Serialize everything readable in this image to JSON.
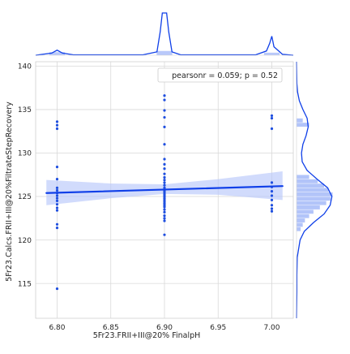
{
  "chart_data": {
    "type": "scatter",
    "xlabel": "5Fr23.FRII+III@20% FinalpH",
    "ylabel": "5Fr23.Calcs.FRII+III@20%FiltrateStepRecovery",
    "xlim": [
      6.78,
      7.02
    ],
    "ylim": [
      111,
      140.5
    ],
    "x_ticks": [
      "6.80",
      "6.85",
      "6.90",
      "6.95",
      "7.00"
    ],
    "x_tick_values": [
      6.8,
      6.85,
      6.9,
      6.95,
      7.0
    ],
    "y_ticks": [
      "115",
      "120",
      "125",
      "130",
      "135",
      "140"
    ],
    "y_tick_values": [
      115,
      120,
      125,
      130,
      135,
      140
    ],
    "legend_text": "pearsonr = 0.059; p = 0.52",
    "legend_placement": "top-right",
    "grid": true,
    "colors": {
      "points": "#1f4fe0",
      "line": "#0f3fe8",
      "band": "#b9c8fb",
      "hist": "#7f9cf5",
      "grid": "#d9d9d9"
    },
    "points": [
      {
        "x": 6.8,
        "y": 133.6
      },
      {
        "x": 6.8,
        "y": 133.2
      },
      {
        "x": 6.8,
        "y": 132.8
      },
      {
        "x": 6.8,
        "y": 128.4
      },
      {
        "x": 6.8,
        "y": 127.0
      },
      {
        "x": 6.8,
        "y": 126.0
      },
      {
        "x": 6.8,
        "y": 125.7
      },
      {
        "x": 6.8,
        "y": 125.4
      },
      {
        "x": 6.8,
        "y": 125.1
      },
      {
        "x": 6.8,
        "y": 124.8
      },
      {
        "x": 6.8,
        "y": 124.5
      },
      {
        "x": 6.8,
        "y": 124.1
      },
      {
        "x": 6.8,
        "y": 123.7
      },
      {
        "x": 6.8,
        "y": 123.4
      },
      {
        "x": 6.8,
        "y": 121.8
      },
      {
        "x": 6.8,
        "y": 121.4
      },
      {
        "x": 6.8,
        "y": 114.4
      },
      {
        "x": 6.9,
        "y": 136.6
      },
      {
        "x": 6.9,
        "y": 136.1
      },
      {
        "x": 6.9,
        "y": 134.9
      },
      {
        "x": 6.9,
        "y": 134.1
      },
      {
        "x": 6.9,
        "y": 133.0
      },
      {
        "x": 6.9,
        "y": 131.0
      },
      {
        "x": 6.9,
        "y": 129.3
      },
      {
        "x": 6.9,
        "y": 128.7
      },
      {
        "x": 6.9,
        "y": 128.2
      },
      {
        "x": 6.9,
        "y": 127.6
      },
      {
        "x": 6.9,
        "y": 127.2
      },
      {
        "x": 6.9,
        "y": 126.9
      },
      {
        "x": 6.9,
        "y": 126.6
      },
      {
        "x": 6.9,
        "y": 126.3
      },
      {
        "x": 6.9,
        "y": 126.0
      },
      {
        "x": 6.9,
        "y": 125.8
      },
      {
        "x": 6.9,
        "y": 125.6
      },
      {
        "x": 6.9,
        "y": 125.4
      },
      {
        "x": 6.9,
        "y": 125.2
      },
      {
        "x": 6.9,
        "y": 125.0
      },
      {
        "x": 6.9,
        "y": 124.8
      },
      {
        "x": 6.9,
        "y": 124.6
      },
      {
        "x": 6.9,
        "y": 124.4
      },
      {
        "x": 6.9,
        "y": 124.2
      },
      {
        "x": 6.9,
        "y": 124.0
      },
      {
        "x": 6.9,
        "y": 123.8
      },
      {
        "x": 6.9,
        "y": 123.5
      },
      {
        "x": 6.9,
        "y": 123.2
      },
      {
        "x": 6.9,
        "y": 122.8
      },
      {
        "x": 6.9,
        "y": 122.5
      },
      {
        "x": 6.9,
        "y": 122.2
      },
      {
        "x": 6.9,
        "y": 120.6
      },
      {
        "x": 7.0,
        "y": 134.3
      },
      {
        "x": 7.0,
        "y": 134.0
      },
      {
        "x": 7.0,
        "y": 132.8
      },
      {
        "x": 7.0,
        "y": 126.6
      },
      {
        "x": 7.0,
        "y": 126.1
      },
      {
        "x": 7.0,
        "y": 125.6
      },
      {
        "x": 7.0,
        "y": 125.1
      },
      {
        "x": 7.0,
        "y": 124.6
      },
      {
        "x": 7.0,
        "y": 124.0
      },
      {
        "x": 7.0,
        "y": 123.6
      },
      {
        "x": 7.0,
        "y": 123.3
      }
    ],
    "regression": {
      "x_range": [
        6.79,
        7.01
      ],
      "y_at_start": 125.4,
      "y_at_end": 126.2,
      "ci_band": [
        {
          "x": 6.79,
          "low": 124.0,
          "high": 126.9
        },
        {
          "x": 6.85,
          "low": 124.8,
          "high": 126.5
        },
        {
          "x": 6.9,
          "low": 125.3,
          "high": 126.4
        },
        {
          "x": 6.95,
          "low": 125.2,
          "high": 127.0
        },
        {
          "x": 7.01,
          "low": 124.6,
          "high": 127.9
        }
      ]
    },
    "x_marginal": {
      "bins": [
        {
          "x0": 6.795,
          "x1": 6.805,
          "count": 17
        },
        {
          "x0": 6.895,
          "x1": 6.905,
          "count": 32
        },
        {
          "x0": 6.995,
          "x1": 7.005,
          "count": 11
        }
      ],
      "kde": [
        [
          6.78,
          0.0
        ],
        [
          6.795,
          0.05
        ],
        [
          6.8,
          0.12
        ],
        [
          6.805,
          0.05
        ],
        [
          6.815,
          0.01
        ],
        [
          6.88,
          0.01
        ],
        [
          6.893,
          0.08
        ],
        [
          6.896,
          0.55
        ],
        [
          6.898,
          1.0
        ],
        [
          6.902,
          1.0
        ],
        [
          6.904,
          0.55
        ],
        [
          6.907,
          0.08
        ],
        [
          6.915,
          0.01
        ],
        [
          6.985,
          0.01
        ],
        [
          6.995,
          0.1
        ],
        [
          6.998,
          0.28
        ],
        [
          7.0,
          0.45
        ],
        [
          7.002,
          0.2
        ],
        [
          7.01,
          0.02
        ],
        [
          7.02,
          0.0
        ]
      ]
    },
    "y_marginal": {
      "bins": [
        {
          "y0": 121.0,
          "y1": 121.5,
          "count": 2
        },
        {
          "y0": 121.5,
          "y1": 122.0,
          "count": 3
        },
        {
          "y0": 122.0,
          "y1": 122.5,
          "count": 4
        },
        {
          "y0": 122.5,
          "y1": 123.0,
          "count": 6
        },
        {
          "y0": 123.0,
          "y1": 123.5,
          "count": 8
        },
        {
          "y0": 123.5,
          "y1": 124.0,
          "count": 11
        },
        {
          "y0": 124.0,
          "y1": 124.5,
          "count": 14
        },
        {
          "y0": 124.5,
          "y1": 125.0,
          "count": 16
        },
        {
          "y0": 125.0,
          "y1": 125.5,
          "count": 17
        },
        {
          "y0": 125.5,
          "y1": 126.0,
          "count": 15
        },
        {
          "y0": 126.0,
          "y1": 126.5,
          "count": 13
        },
        {
          "y0": 126.5,
          "y1": 127.0,
          "count": 10
        },
        {
          "y0": 127.0,
          "y1": 127.5,
          "count": 6
        },
        {
          "y0": 133.0,
          "y1": 133.5,
          "count": 6
        },
        {
          "y0": 133.5,
          "y1": 134.0,
          "count": 3
        }
      ],
      "kde": [
        [
          111.0,
          0.0
        ],
        [
          114.0,
          0.01
        ],
        [
          116.0,
          0.01
        ],
        [
          118.0,
          0.02
        ],
        [
          120.0,
          0.1
        ],
        [
          121.0,
          0.22
        ],
        [
          122.0,
          0.48
        ],
        [
          123.0,
          0.78
        ],
        [
          124.0,
          0.95
        ],
        [
          125.0,
          1.0
        ],
        [
          126.0,
          0.88
        ],
        [
          127.0,
          0.58
        ],
        [
          128.0,
          0.3
        ],
        [
          129.0,
          0.16
        ],
        [
          130.0,
          0.14
        ],
        [
          131.0,
          0.18
        ],
        [
          132.0,
          0.27
        ],
        [
          133.0,
          0.33
        ],
        [
          134.0,
          0.3
        ],
        [
          135.0,
          0.18
        ],
        [
          136.0,
          0.08
        ],
        [
          137.0,
          0.03
        ],
        [
          138.0,
          0.01
        ],
        [
          140.5,
          0.0
        ]
      ]
    }
  }
}
